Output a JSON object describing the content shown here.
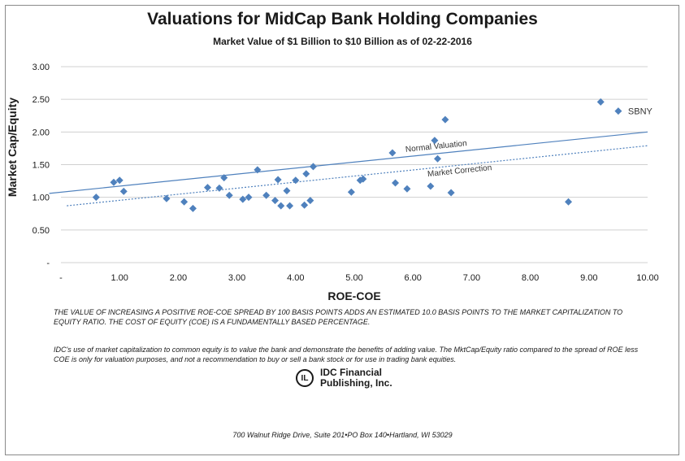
{
  "chart_data": {
    "type": "scatter",
    "title": "Valuations for MidCap Bank Holding Companies",
    "subtitle": "Market Value of $1 Billion to $10 Billion as of 02-22-2016",
    "xlabel": "ROE-COE",
    "ylabel": "Market Cap/Equity",
    "xlim": [
      0,
      10
    ],
    "ylim": [
      0,
      3
    ],
    "xticks": [
      "-",
      "1.00",
      "2.00",
      "3.00",
      "4.00",
      "5.00",
      "6.00",
      "7.00",
      "8.00",
      "9.00",
      "10.00"
    ],
    "yticks": [
      "-",
      "0.50",
      "1.00",
      "1.50",
      "2.00",
      "2.50",
      "3.00"
    ],
    "grid": "horizontal",
    "marker_color": "#4f81bd",
    "points": [
      [
        0.6,
        1.0
      ],
      [
        0.9,
        1.23
      ],
      [
        1.0,
        1.26
      ],
      [
        1.07,
        1.09
      ],
      [
        1.8,
        0.98
      ],
      [
        2.1,
        0.93
      ],
      [
        2.25,
        0.83
      ],
      [
        2.5,
        1.15
      ],
      [
        2.7,
        1.14
      ],
      [
        2.78,
        1.3
      ],
      [
        2.87,
        1.03
      ],
      [
        3.1,
        0.97
      ],
      [
        3.2,
        1.0
      ],
      [
        3.35,
        1.42
      ],
      [
        3.5,
        1.03
      ],
      [
        3.65,
        0.95
      ],
      [
        3.7,
        1.27
      ],
      [
        3.75,
        0.87
      ],
      [
        3.85,
        1.1
      ],
      [
        3.9,
        0.87
      ],
      [
        4.0,
        1.26
      ],
      [
        4.15,
        0.88
      ],
      [
        4.18,
        1.36
      ],
      [
        4.25,
        0.95
      ],
      [
        4.3,
        1.47
      ],
      [
        4.95,
        1.08
      ],
      [
        5.1,
        1.26
      ],
      [
        5.15,
        1.28
      ],
      [
        5.65,
        1.68
      ],
      [
        5.7,
        1.22
      ],
      [
        5.9,
        1.13
      ],
      [
        6.3,
        1.17
      ],
      [
        6.37,
        1.87
      ],
      [
        6.42,
        1.59
      ],
      [
        6.55,
        2.19
      ],
      [
        6.65,
        1.07
      ],
      [
        8.65,
        0.93
      ],
      [
        9.2,
        2.46
      ],
      [
        9.5,
        2.32
      ]
    ],
    "lines": [
      {
        "name": "Normal Valuation",
        "x": [
          -0.2,
          10
        ],
        "y": [
          1.06,
          2.0
        ],
        "style": "solid"
      },
      {
        "name": "Market Correction",
        "x": [
          0.1,
          10
        ],
        "y": [
          0.87,
          1.79
        ],
        "style": "dotted"
      }
    ],
    "point_labels": [
      {
        "text": "SBNY",
        "x": 9.5,
        "y": 2.32
      }
    ]
  },
  "notes": {
    "spread": "The value of increasing a positive ROE-COE spread by 100 basis points adds an estimated 10.0 basis points to the market capitalization to equity ratio.  The cost of equity (COE) is a fundamentally based percentage.",
    "disclaimer": "IDC's use of market capitalization to common equity is to value the bank and demonstrate the benefits of adding value.  The MktCap/Equity ratio compared to the spread of ROE less COE is only for valuation purposes, and not a recommendation to buy or sell a bank stock or for use in trading bank equities."
  },
  "logo": {
    "line1": "IDC Financial",
    "line2": "Publishing, Inc."
  },
  "address": "700 Walnut Ridge Drive, Suite 201•PO Box 140•Hartland, WI 53029"
}
